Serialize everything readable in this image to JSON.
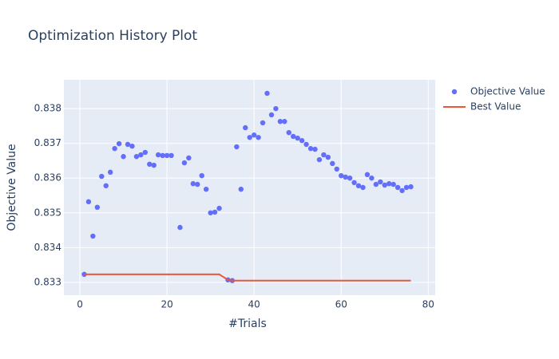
{
  "chart_data": {
    "type": "scatter",
    "title": "Optimization History Plot",
    "xlabel": "#Trials",
    "ylabel": "Objective Value",
    "x": [
      1,
      2,
      3,
      4,
      5,
      6,
      7,
      8,
      9,
      10,
      11,
      12,
      13,
      14,
      15,
      16,
      17,
      18,
      19,
      20,
      21,
      23,
      24,
      25,
      26,
      27,
      28,
      29,
      30,
      31,
      32,
      34,
      35,
      36,
      37,
      38,
      39,
      40,
      41,
      42,
      43,
      44,
      45,
      46,
      47,
      48,
      49,
      50,
      51,
      52,
      53,
      54,
      55,
      56,
      57,
      58,
      59,
      60,
      61,
      62,
      63,
      64,
      65,
      66,
      67,
      68,
      69,
      70,
      71,
      72,
      73,
      74,
      75,
      76
    ],
    "series": [
      {
        "name": "Objective Value",
        "mode": "markers",
        "color": "#636efa",
        "values": [
          0.83323,
          0.83532,
          0.83433,
          0.83516,
          0.83605,
          0.83578,
          0.83617,
          0.83685,
          0.83699,
          0.83662,
          0.83697,
          0.83692,
          0.83662,
          0.83667,
          0.83674,
          0.8364,
          0.83637,
          0.83667,
          0.83665,
          0.83665,
          0.83665,
          0.83458,
          0.83644,
          0.83658,
          0.83584,
          0.83582,
          0.83607,
          0.83568,
          0.835,
          0.83502,
          0.83513,
          0.83307,
          0.83305,
          0.8369,
          0.83568,
          0.83745,
          0.83717,
          0.83724,
          0.83717,
          0.83759,
          0.83844,
          0.83782,
          0.838,
          0.83763,
          0.83763,
          0.83731,
          0.8372,
          0.83715,
          0.83708,
          0.83697,
          0.83685,
          0.83683,
          0.83653,
          0.83667,
          0.8366,
          0.83642,
          0.83626,
          0.83607,
          0.83603,
          0.836,
          0.83587,
          0.83578,
          0.83573,
          0.8361,
          0.836,
          0.83582,
          0.83589,
          0.8358,
          0.83584,
          0.83582,
          0.83573,
          0.83564,
          0.83573,
          0.83575
        ]
      },
      {
        "name": "Best Value",
        "mode": "lines",
        "color": "#ef553b",
        "values": [
          0.83323,
          0.83323,
          0.83323,
          0.83323,
          0.83323,
          0.83323,
          0.83323,
          0.83323,
          0.83323,
          0.83323,
          0.83323,
          0.83323,
          0.83323,
          0.83323,
          0.83323,
          0.83323,
          0.83323,
          0.83323,
          0.83323,
          0.83323,
          0.83323,
          0.83323,
          0.83323,
          0.83323,
          0.83323,
          0.83323,
          0.83323,
          0.83323,
          0.83323,
          0.83323,
          0.83323,
          0.83307,
          0.83305,
          0.83305,
          0.83305,
          0.83305,
          0.83305,
          0.83305,
          0.83305,
          0.83305,
          0.83305,
          0.83305,
          0.83305,
          0.83305,
          0.83305,
          0.83305,
          0.83305,
          0.83305,
          0.83305,
          0.83305,
          0.83305,
          0.83305,
          0.83305,
          0.83305,
          0.83305,
          0.83305,
          0.83305,
          0.83305,
          0.83305,
          0.83305,
          0.83305,
          0.83305,
          0.83305,
          0.83305,
          0.83305,
          0.83305,
          0.83305,
          0.83305,
          0.83305,
          0.83305,
          0.83305,
          0.83305,
          0.83305,
          0.83305
        ]
      }
    ],
    "xlim": [
      -3.67,
      81.6
    ],
    "ylim": [
      0.83263,
      0.83883
    ],
    "xticks": [
      0,
      20,
      40,
      60,
      80
    ],
    "yticks": [
      0.833,
      0.834,
      0.835,
      0.836,
      0.837,
      0.838
    ],
    "grid": true,
    "legend": "outside-right",
    "background": "#e5ecf6"
  }
}
